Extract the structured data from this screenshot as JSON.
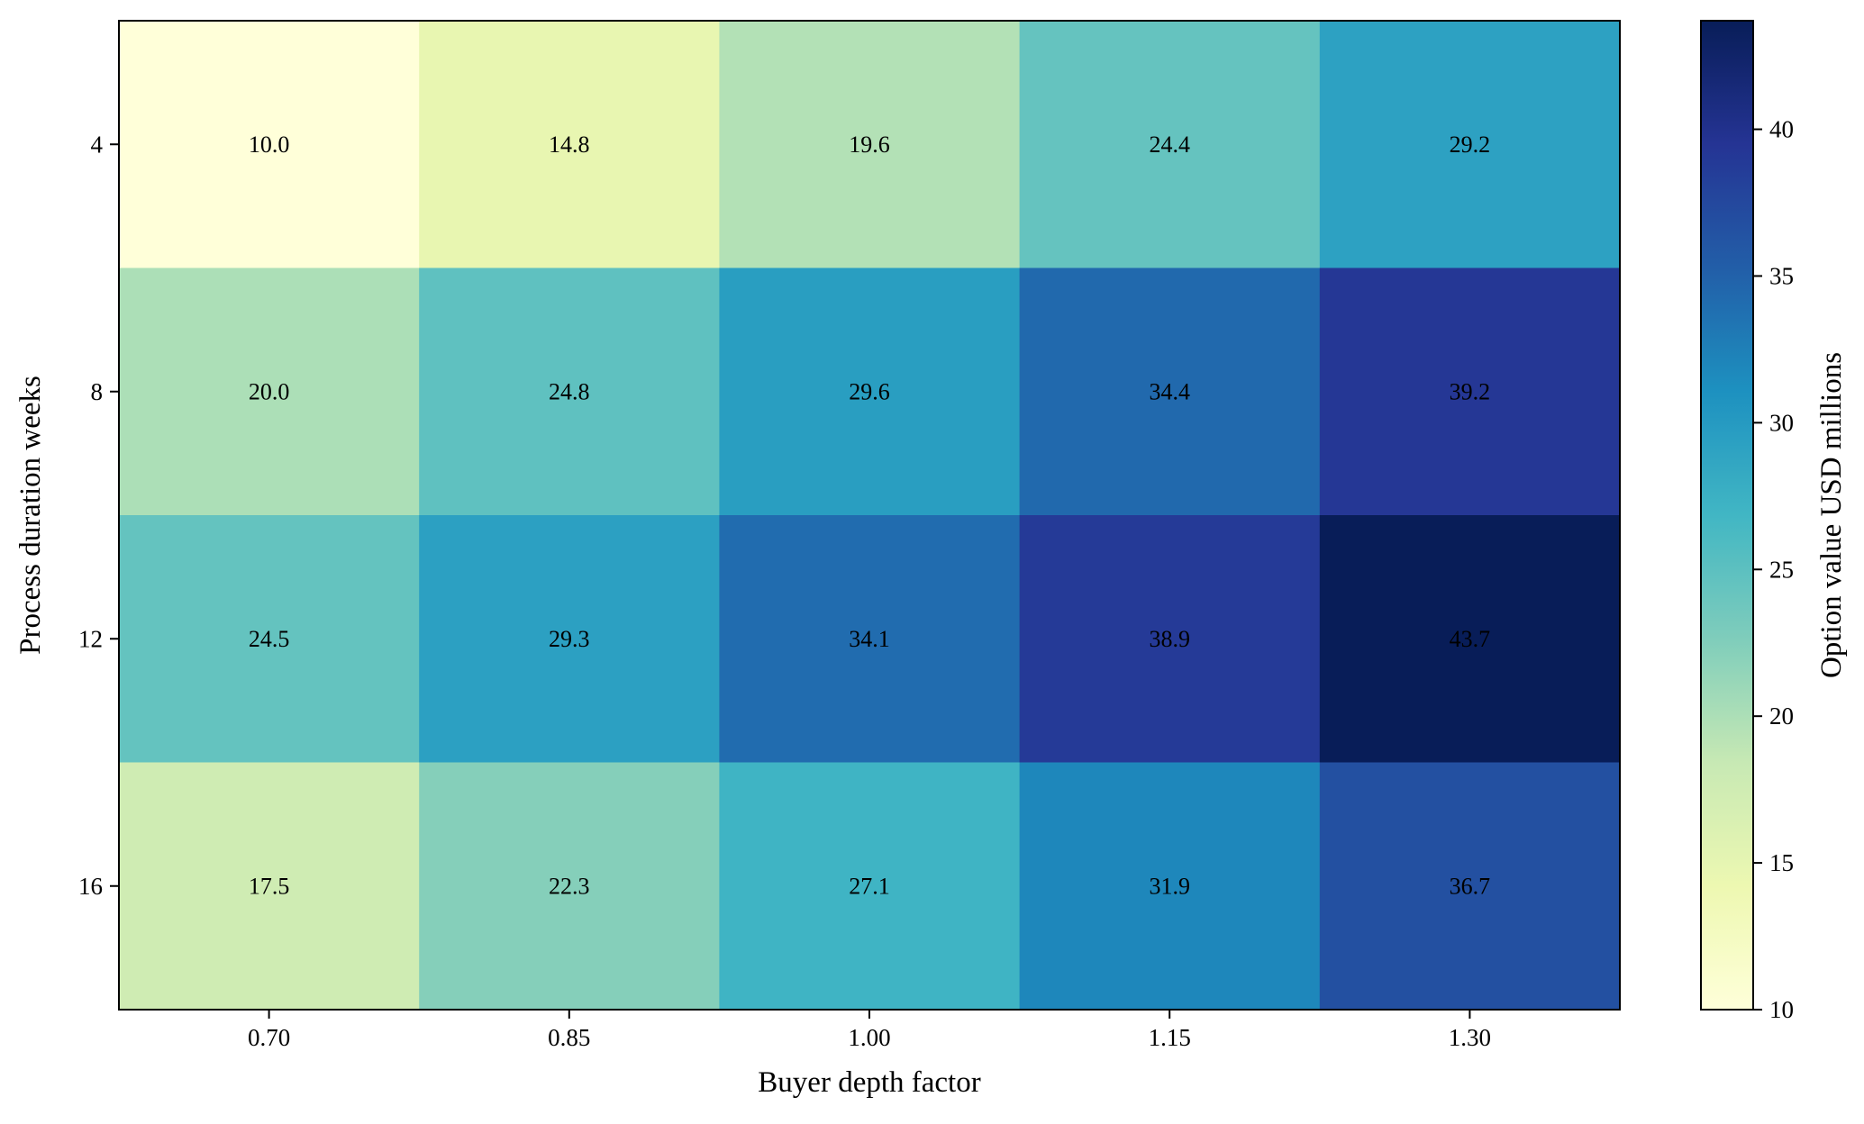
{
  "chart_data": {
    "type": "heatmap",
    "x_categories": [
      "0.70",
      "0.85",
      "1.00",
      "1.15",
      "1.30"
    ],
    "y_categories": [
      "4",
      "8",
      "12",
      "16"
    ],
    "values": [
      [
        10.0,
        14.8,
        19.6,
        24.4,
        29.2
      ],
      [
        20.0,
        24.8,
        29.6,
        34.4,
        39.2
      ],
      [
        24.5,
        29.3,
        34.1,
        38.9,
        43.7
      ],
      [
        17.5,
        22.3,
        27.1,
        31.9,
        36.7
      ]
    ],
    "cell_labels": [
      [
        "10.0",
        "14.8",
        "19.6",
        "24.4",
        "29.2"
      ],
      [
        "20.0",
        "24.8",
        "29.6",
        "34.4",
        "39.2"
      ],
      [
        "24.5",
        "29.3",
        "34.1",
        "38.9",
        "43.7"
      ],
      [
        "17.5",
        "22.3",
        "27.1",
        "31.9",
        "36.7"
      ]
    ],
    "xlabel": "Buyer depth factor",
    "ylabel": "Process duration weeks",
    "colormap": "YlGnBu",
    "colorbar": {
      "label": "Option value USD millions",
      "range": [
        10,
        43.7
      ],
      "ticks": [
        "10",
        "15",
        "20",
        "25",
        "30",
        "35",
        "40"
      ]
    },
    "grid": false,
    "legend": "none"
  }
}
